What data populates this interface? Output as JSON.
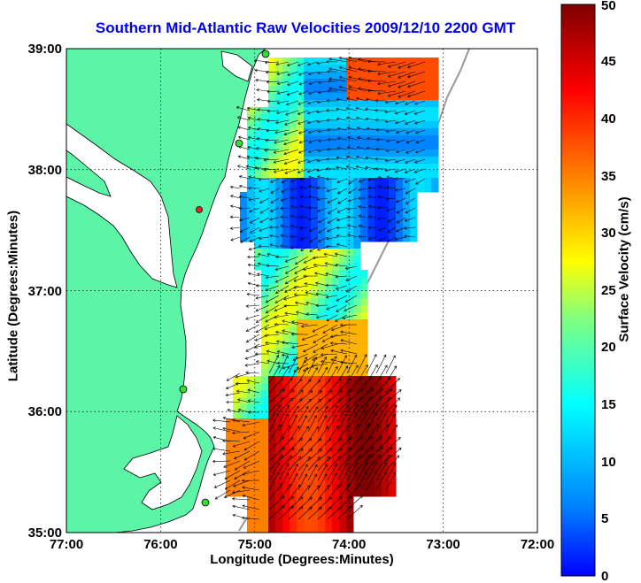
{
  "title": "Southern Mid-Atlantic Raw Velocities 2009/12/10 2200 GMT",
  "x_axis": {
    "label": "Longitude (Degrees:Minutes)",
    "ticks": [
      "77:00",
      "76:00",
      "75:00",
      "74:00",
      "73:00",
      "72:00"
    ]
  },
  "y_axis": {
    "label": "Latitude (Degrees:Minutes)",
    "ticks": [
      "39:00",
      "38:00",
      "37:00",
      "36:00",
      "35:00"
    ]
  },
  "colorbar": {
    "label": "Surface Velocity (cm/s)",
    "ticks": [
      "0",
      "5",
      "10",
      "15",
      "20",
      "25",
      "30",
      "35",
      "40",
      "45",
      "50"
    ],
    "min": 0,
    "max": 50,
    "colormap": "jet"
  },
  "colors": {
    "title": "#0000ee",
    "land": "#5cf5a8",
    "ocean": "#ffffff",
    "coastline": "#000000",
    "station": "#33dd33",
    "station_inactive": "#ee2222"
  },
  "map_extent": {
    "lon_west": -77.0,
    "lon_east": -72.0,
    "lat_south": 35.0,
    "lat_north": 39.0
  }
}
